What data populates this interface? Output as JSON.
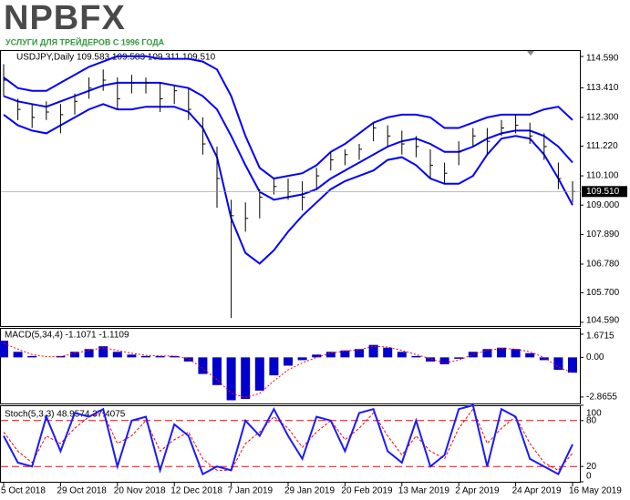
{
  "logo": {
    "name": "NPBFX",
    "tagline": "УСЛУГИ ДЛЯ ТРЕЙДЕРОВ С 1996 ГОДА"
  },
  "chart_data": [
    {
      "type": "ohlc",
      "title": "USDJPY,Daily  109.583 109.583 109.311 109.510",
      "color": "#000000",
      "high": [
        114.3,
        113.0,
        112.8,
        112.9,
        112.8,
        113.2,
        113.8,
        114.1,
        113.8,
        113.9,
        113.8,
        113.6,
        113.5,
        113.4,
        112.3,
        111.2,
        109.2,
        109.1,
        109.6,
        110.0,
        110.0,
        109.9,
        110.4,
        111.0,
        111.1,
        111.3,
        112.1,
        112.0,
        111.8,
        111.6,
        111.1,
        110.6,
        111.4,
        111.9,
        111.9,
        112.2,
        112.4,
        112.1,
        111.7,
        110.6,
        109.9
      ],
      "low": [
        113.1,
        112.2,
        111.9,
        112.2,
        111.7,
        112.4,
        113.0,
        113.3,
        112.6,
        113.2,
        113.2,
        112.5,
        112.8,
        112.2,
        110.9,
        108.9,
        104.75,
        108.0,
        108.5,
        109.4,
        109.2,
        108.8,
        109.6,
        110.3,
        110.5,
        110.7,
        111.4,
        111.2,
        110.9,
        110.8,
        110.0,
        109.8,
        110.5,
        111.2,
        110.9,
        111.6,
        111.7,
        111.3,
        110.7,
        109.6,
        109.1
      ],
      "close": [
        113.7,
        112.6,
        112.3,
        112.5,
        112.4,
        112.9,
        113.4,
        113.7,
        113.0,
        113.6,
        113.6,
        113.0,
        113.3,
        112.6,
        111.3,
        110.0,
        108.6,
        108.5,
        109.3,
        109.7,
        109.5,
        109.3,
        110.1,
        110.7,
        110.9,
        111.1,
        111.9,
        111.6,
        111.3,
        111.2,
        110.5,
        110.2,
        111.0,
        111.6,
        111.4,
        111.9,
        112.0,
        111.6,
        111.2,
        110.0,
        109.51
      ],
      "bands": {
        "color": "#0000ff",
        "upper": [
          113.8,
          113.4,
          113.3,
          113.3,
          113.6,
          113.9,
          114.2,
          114.4,
          114.6,
          114.6,
          114.6,
          114.5,
          114.5,
          114.5,
          114.4,
          114.1,
          113.1,
          111.6,
          110.4,
          110.0,
          110.1,
          110.2,
          110.5,
          111.0,
          111.3,
          111.7,
          112.1,
          112.3,
          112.4,
          112.4,
          112.3,
          111.9,
          111.9,
          112.1,
          112.3,
          112.4,
          112.4,
          112.4,
          112.6,
          112.7,
          112.2
        ],
        "middle": [
          113.1,
          112.9,
          112.8,
          112.7,
          112.9,
          113.1,
          113.3,
          113.5,
          113.6,
          113.6,
          113.6,
          113.6,
          113.5,
          113.4,
          113.1,
          112.6,
          111.6,
          110.5,
          109.5,
          109.2,
          109.3,
          109.4,
          109.6,
          110.0,
          110.3,
          110.6,
          110.9,
          111.2,
          111.4,
          111.5,
          111.3,
          111.0,
          111.0,
          111.2,
          111.5,
          111.7,
          111.8,
          111.8,
          111.6,
          111.2,
          110.6
        ],
        "lower": [
          112.4,
          112.0,
          111.8,
          111.7,
          112.0,
          112.3,
          112.6,
          112.8,
          112.6,
          112.6,
          112.7,
          112.7,
          112.7,
          112.5,
          111.9,
          110.8,
          108.5,
          107.2,
          106.8,
          107.3,
          108.0,
          108.6,
          109.1,
          109.6,
          109.9,
          110.1,
          110.3,
          110.7,
          110.8,
          110.5,
          110.0,
          109.8,
          109.8,
          110.1,
          110.9,
          111.5,
          111.6,
          111.5,
          110.9,
          110.0,
          109.0
        ]
      },
      "last_price": {
        "value": 109.51,
        "label": "109.510"
      },
      "ylim": [
        104.45,
        114.83
      ],
      "yticks": [
        {
          "value": 114.59,
          "label": "114.590"
        },
        {
          "value": 113.41,
          "label": "113.410"
        },
        {
          "value": 112.3,
          "label": "112.300"
        },
        {
          "value": 111.22,
          "label": "111.220"
        },
        {
          "value": 110.1,
          "label": "110.100"
        },
        {
          "value": 109.0,
          "label": "109.000"
        },
        {
          "value": 107.89,
          "label": "107.890"
        },
        {
          "value": 106.78,
          "label": "106.780"
        },
        {
          "value": 105.7,
          "label": "105.700"
        },
        {
          "value": 104.59,
          "label": "104.590"
        }
      ]
    },
    {
      "type": "macd",
      "title": "MACD(5,34,4) -1.1071 -1.1109",
      "color": "#0000cc",
      "signal_color": "#ff0000",
      "values": [
        1.2,
        0.4,
        0.1,
        0.0,
        0.1,
        0.4,
        0.6,
        0.8,
        0.4,
        0.2,
        0.1,
        0.1,
        0.1,
        -0.3,
        -1.2,
        -2.0,
        -3.1,
        -3.0,
        -2.4,
        -1.3,
        -0.6,
        -0.2,
        0.2,
        0.4,
        0.5,
        0.6,
        0.9,
        0.7,
        0.4,
        0.1,
        -0.3,
        -0.5,
        -0.1,
        0.4,
        0.6,
        0.7,
        0.6,
        0.3,
        -0.2,
        -0.9,
        -1.1071
      ],
      "signal": [
        1.0,
        0.6,
        0.2,
        0.05,
        0.05,
        0.3,
        0.5,
        0.7,
        0.5,
        0.3,
        0.15,
        0.1,
        0.1,
        -0.1,
        -0.8,
        -1.6,
        -2.6,
        -2.9,
        -2.6,
        -1.7,
        -0.9,
        -0.4,
        0.0,
        0.3,
        0.45,
        0.55,
        0.8,
        0.75,
        0.5,
        0.2,
        -0.1,
        -0.4,
        -0.2,
        0.2,
        0.5,
        0.65,
        0.6,
        0.4,
        0.0,
        -0.7,
        -1.1109
      ],
      "ylim": [
        -3.33,
        2.13
      ],
      "yticks": [
        1.6715,
        {
          "value": 0,
          "label": "0.00"
        },
        -2.8655
      ]
    },
    {
      "type": "stoch",
      "title": "Stoch(5,3,3) 48.9574 37.4075",
      "color": "#1a1aff",
      "signal_color": "#ff0000",
      "categories": [
        "5 Oct 2018",
        null,
        null,
        null,
        "29 Oct 2018",
        null,
        null,
        null,
        "20 Nov 2018",
        null,
        null,
        null,
        "12 Dec 2018",
        null,
        null,
        null,
        "7 Jan 2019",
        null,
        null,
        null,
        "29 Jan 2019",
        null,
        null,
        null,
        "20 Feb 2019",
        null,
        null,
        null,
        "13 Mar 2019",
        null,
        null,
        null,
        "2 Apr 2019",
        null,
        null,
        null,
        "24 Apr 2019",
        null,
        null,
        null,
        "16 May 2019"
      ],
      "values": [
        60,
        25,
        20,
        85,
        40,
        90,
        85,
        95,
        20,
        80,
        85,
        15,
        75,
        60,
        10,
        20,
        15,
        80,
        60,
        95,
        60,
        30,
        85,
        80,
        40,
        90,
        95,
        40,
        25,
        80,
        20,
        35,
        95,
        100,
        20,
        95,
        85,
        30,
        20,
        10,
        48.9574
      ],
      "signal": [
        65,
        40,
        25,
        60,
        50,
        70,
        85,
        90,
        50,
        60,
        80,
        40,
        55,
        65,
        30,
        15,
        15,
        50,
        65,
        85,
        70,
        45,
        65,
        80,
        55,
        70,
        90,
        60,
        35,
        60,
        40,
        30,
        70,
        95,
        50,
        70,
        85,
        50,
        25,
        15,
        37.4075
      ],
      "levels": [
        80,
        20
      ],
      "ylim": [
        0,
        100
      ],
      "yticks": [
        100,
        80,
        20,
        0
      ]
    }
  ]
}
